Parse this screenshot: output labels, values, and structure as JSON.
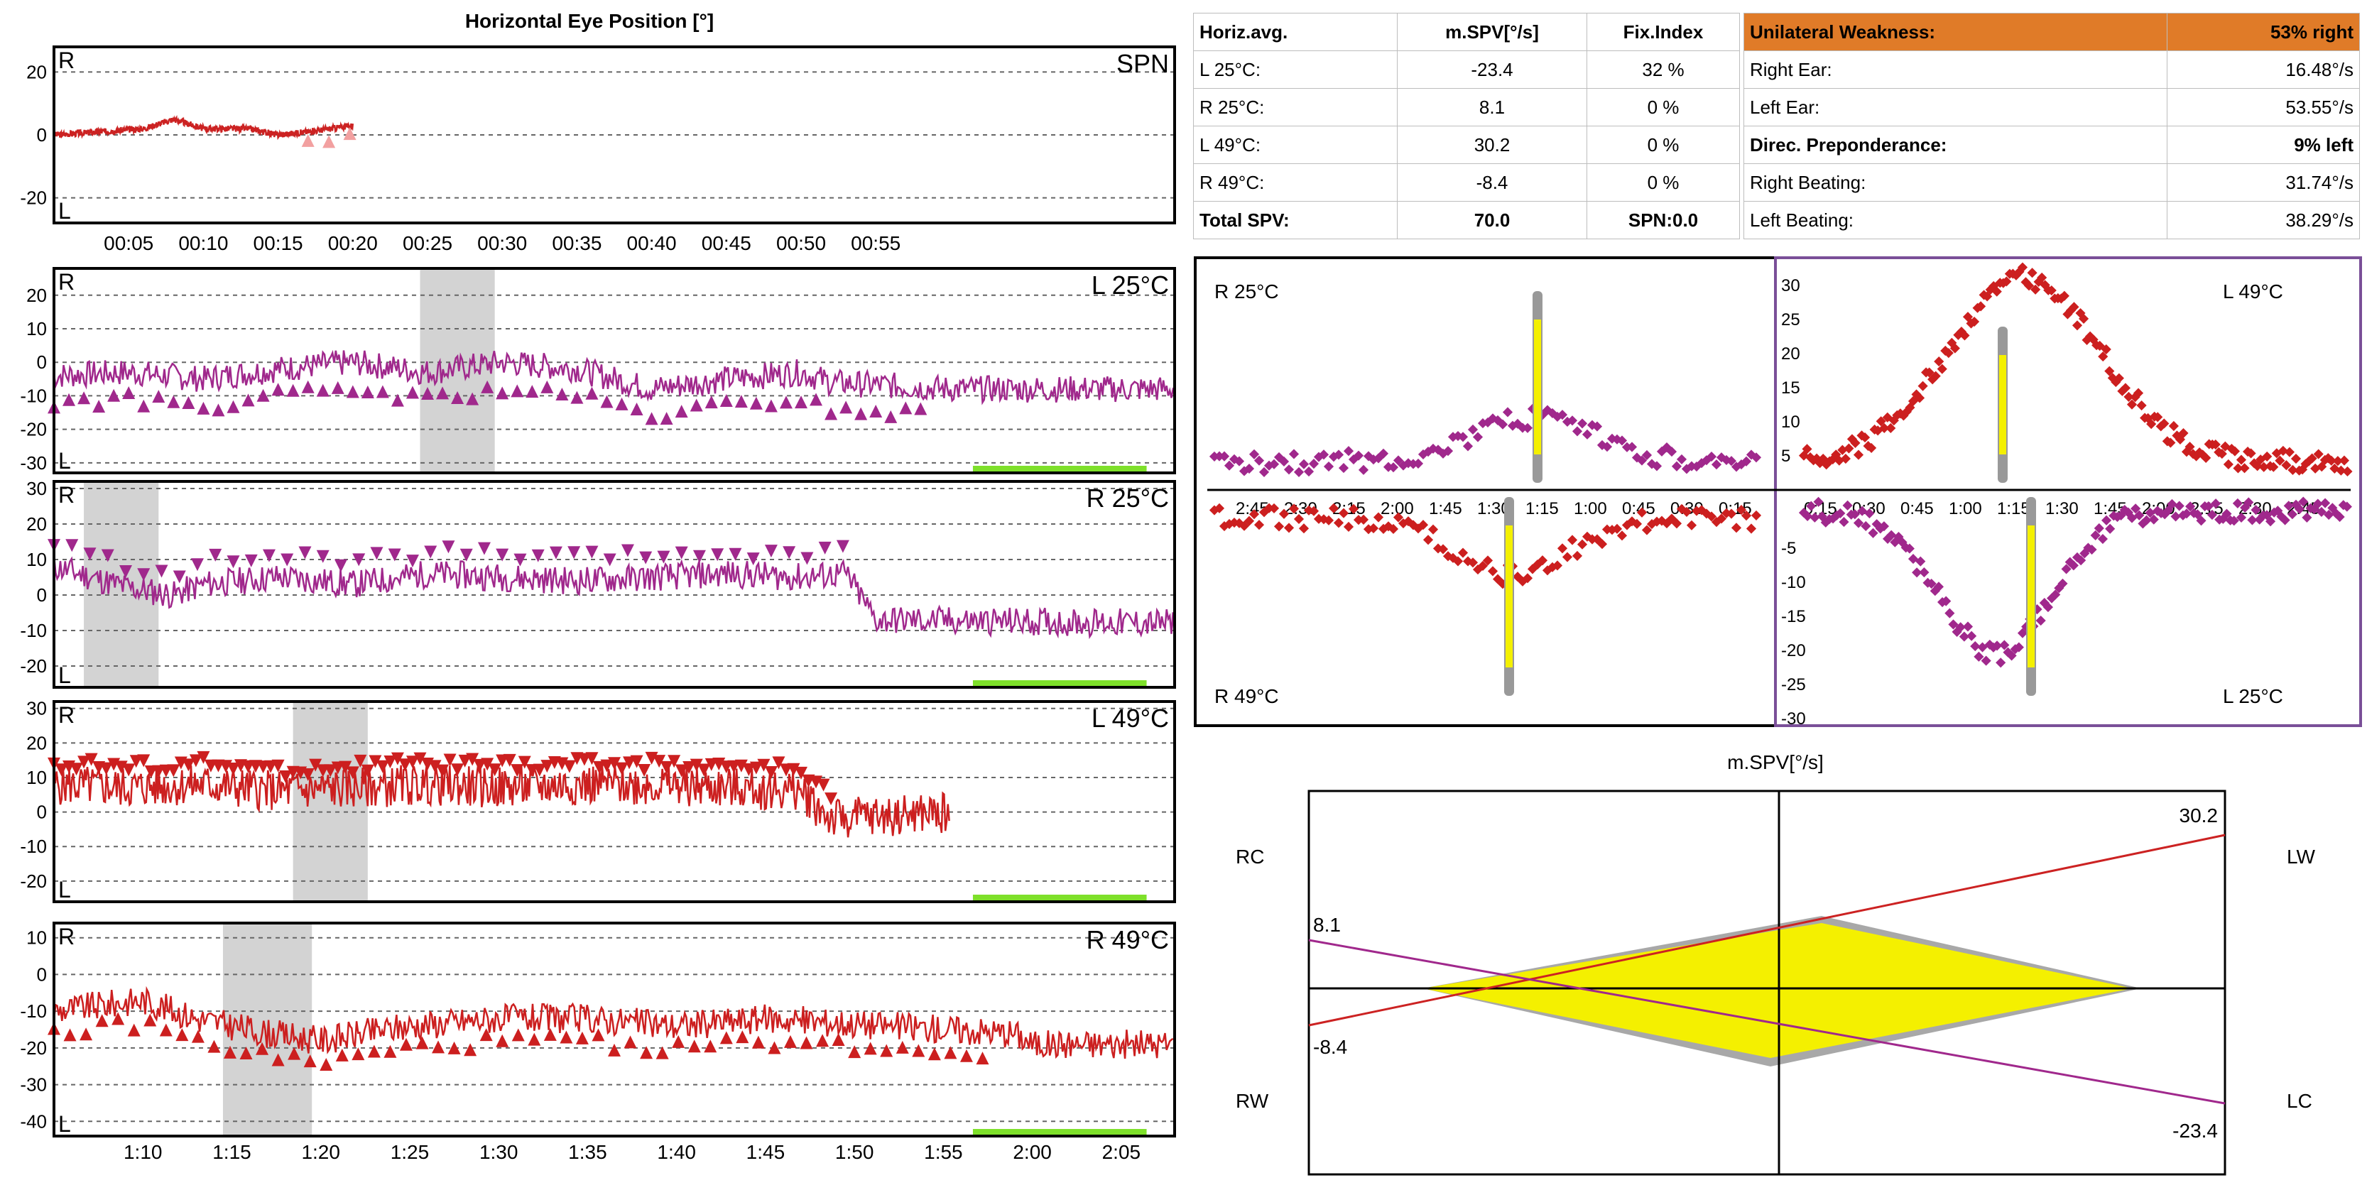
{
  "left_title": "Horizontal Eye Position [°]",
  "panels": [
    {
      "name": "SPN",
      "label": "SPN",
      "y_ticks": [
        20,
        0,
        -20
      ],
      "ylim": [
        -28,
        28
      ],
      "side_top": "R",
      "side_bottom": "L",
      "green_bar": false,
      "gray_band": null,
      "color": "#cc2222",
      "marker": "up",
      "marker_color": "#f2a0a0",
      "span": [
        0,
        20
      ],
      "base": [
        [
          0,
          0
        ],
        [
          3,
          1
        ],
        [
          6,
          2
        ],
        [
          8,
          5
        ],
        [
          10,
          2
        ],
        [
          13,
          2
        ],
        [
          15,
          0
        ],
        [
          17,
          1
        ],
        [
          20,
          3
        ]
      ],
      "noise": 1,
      "mk_offset": -4,
      "mk_every": 1.4,
      "mk_range": [
        17,
        20
      ],
      "seed": 3
    },
    {
      "name": "L25",
      "label": "L 25°C",
      "y_ticks": [
        20,
        10,
        0,
        -10,
        -20,
        -30
      ],
      "ylim": [
        -33,
        28
      ],
      "side_top": "R",
      "side_bottom": "L",
      "green_bar": true,
      "gray_band": [
        24.5,
        29.5
      ],
      "color": "#a0288c",
      "marker": "up",
      "marker_color": "#a0288c",
      "span": [
        0,
        75
      ],
      "base": [
        [
          0,
          -4
        ],
        [
          5,
          -3
        ],
        [
          10,
          -5
        ],
        [
          15,
          -2
        ],
        [
          20,
          0
        ],
        [
          25,
          -3
        ],
        [
          30,
          0
        ],
        [
          35,
          -2
        ],
        [
          40,
          -8
        ],
        [
          45,
          -5
        ],
        [
          50,
          -3
        ],
        [
          52,
          -6
        ],
        [
          60,
          -8
        ],
        [
          75,
          -8
        ]
      ],
      "noise": 4,
      "mk_offset": -8,
      "mk_every": 1.0,
      "mk_range": [
        0,
        58
      ],
      "seed": 7
    },
    {
      "name": "R25",
      "label": "R 25°C",
      "y_ticks": [
        30,
        20,
        10,
        0,
        -10,
        -20
      ],
      "ylim": [
        -26,
        32
      ],
      "side_top": "R",
      "side_bottom": "L",
      "green_bar": true,
      "gray_band": [
        2,
        7
      ],
      "color": "#a0288c",
      "marker": "down",
      "marker_color": "#a0288c",
      "span": [
        0,
        75
      ],
      "base": [
        [
          0,
          8
        ],
        [
          5,
          2
        ],
        [
          8,
          0
        ],
        [
          10,
          3
        ],
        [
          15,
          5
        ],
        [
          20,
          3
        ],
        [
          25,
          6
        ],
        [
          30,
          5
        ],
        [
          35,
          4
        ],
        [
          45,
          6
        ],
        [
          50,
          5
        ],
        [
          53,
          6
        ],
        [
          55,
          -7
        ],
        [
          75,
          -8
        ]
      ],
      "noise": 4,
      "mk_offset": 6,
      "mk_every": 1.2,
      "mk_range": [
        0,
        54
      ],
      "seed": 11
    },
    {
      "name": "L49",
      "label": "L 49°C",
      "y_ticks": [
        30,
        20,
        10,
        0,
        -10,
        -20
      ],
      "ylim": [
        -26,
        32
      ],
      "side_top": "R",
      "side_bottom": "L",
      "green_bar": true,
      "gray_band": [
        16,
        21
      ],
      "color": "#cc1f1f",
      "marker": "down",
      "marker_color": "#cc1f1f",
      "span": [
        0,
        60
      ],
      "base": [
        [
          0,
          8
        ],
        [
          5,
          7
        ],
        [
          10,
          8
        ],
        [
          15,
          6
        ],
        [
          20,
          7
        ],
        [
          25,
          8
        ],
        [
          30,
          7
        ],
        [
          35,
          8
        ],
        [
          40,
          8
        ],
        [
          45,
          7
        ],
        [
          50,
          6
        ],
        [
          52,
          -2
        ],
        [
          60,
          0
        ]
      ],
      "noise": 6,
      "mk_offset": 6,
      "mk_every": 0.5,
      "mk_range": [
        0,
        52
      ],
      "seed": 5
    },
    {
      "name": "R49",
      "label": "R 49°C",
      "y_ticks": [
        10,
        0,
        -10,
        -20,
        -30,
        -40
      ],
      "ylim": [
        -44,
        14
      ],
      "side_top": "R",
      "side_bottom": "L",
      "green_bar": true,
      "gray_band": [
        74.5,
        79.5
      ],
      "color": "#cc1f1f",
      "marker": "up",
      "marker_color": "#cc1f1f",
      "span": [
        65,
        128
      ],
      "base": [
        [
          65,
          -10
        ],
        [
          70,
          -7
        ],
        [
          73,
          -12
        ],
        [
          77,
          -16
        ],
        [
          80,
          -18
        ],
        [
          85,
          -14
        ],
        [
          90,
          -12
        ],
        [
          95,
          -12
        ],
        [
          100,
          -14
        ],
        [
          105,
          -12
        ],
        [
          112,
          -14
        ],
        [
          119,
          -16
        ],
        [
          120,
          -19
        ],
        [
          128,
          -19
        ]
      ],
      "noise": 4,
      "mk_offset": -6,
      "mk_every": 0.9,
      "mk_range": [
        65,
        118
      ],
      "seed": 9
    }
  ],
  "time_axis_1": [
    "00:05",
    "00:10",
    "00:15",
    "00:20",
    "00:25",
    "00:30",
    "00:35",
    "00:40",
    "00:45",
    "00:50",
    "00:55"
  ],
  "time_axis_2": [
    "1:10",
    "1:15",
    "1:20",
    "1:25",
    "1:30",
    "1:35",
    "1:40",
    "1:45",
    "1:50",
    "1:55",
    "2:00",
    "2:05"
  ],
  "table": {
    "headers": [
      "Horiz.avg.",
      "m.SPV[°/s]",
      "Fix.Index"
    ],
    "rows": [
      [
        "L 25°C:",
        "-23.4",
        "32 %"
      ],
      [
        "R 25°C:",
        "8.1",
        "0 %"
      ],
      [
        "L 49°C:",
        "30.2",
        "0 %"
      ],
      [
        "R 49°C:",
        "-8.4",
        "0 %"
      ],
      [
        "Total SPV:",
        "70.0",
        "SPN:0.0"
      ]
    ]
  },
  "summary": {
    "unilateral_label": "Unilateral Weakness:",
    "unilateral_value": "53% right",
    "right_ear_label": "Right Ear:",
    "right_ear_value": "16.48°/s",
    "left_ear_label": "Left Ear:",
    "left_ear_value": "53.55°/s",
    "dp_label": "Direc. Preponderance:",
    "dp_value": "9% left",
    "right_beat_label": "Right Beating:",
    "right_beat_value": "31.74°/s",
    "left_beat_label": "Left Beating:",
    "left_beat_value": "38.29°/s"
  },
  "butterfly": {
    "labels": {
      "top_left": "R 25°C",
      "bottom_left": "R 49°C",
      "top_right": "L 49°C",
      "bottom_right": "L 25°C"
    },
    "left_ticks": [
      "2:45",
      "2:30",
      "2:15",
      "2:00",
      "1:45",
      "1:30",
      "1:15",
      "1:00",
      "0:45",
      "0:30",
      "0:15"
    ],
    "right_ticks": [
      "0:15",
      "0:30",
      "0:45",
      "1:00",
      "1:15",
      "1:30",
      "1:45",
      "2:00",
      "2:15",
      "2:30",
      "2:45"
    ],
    "y_ticks_pos": [
      "30",
      "25",
      "20",
      "15",
      "10",
      "5"
    ],
    "y_ticks_neg": [
      "-5",
      "-10",
      "-15",
      "-20",
      "-25",
      "-30"
    ],
    "colors": {
      "purple": "#a0288c",
      "red": "#cc1f1f",
      "yellow": "#f4f000",
      "gray": "#999999"
    }
  },
  "freyer": {
    "title": "m.SPV[°/s]",
    "lw_label": "LW",
    "lc_label": "LC",
    "rc_label": "RC",
    "rw_label": "RW",
    "v_lw": "30.2",
    "v_lc": "-23.4",
    "v_rc": "8.1",
    "v_rw": "-8.4"
  },
  "chart_data": [
    {
      "type": "table",
      "title": "Horizontal averages",
      "columns": [
        "Horiz.avg.",
        "m.SPV[°/s]",
        "Fix.Index"
      ],
      "rows": [
        [
          "L 25°C",
          "-23.4",
          "32 %"
        ],
        [
          "R 25°C",
          "8.1",
          "0 %"
        ],
        [
          "L 49°C",
          "30.2",
          "0 %"
        ],
        [
          "R 49°C",
          "-8.4",
          "0 %"
        ],
        [
          "Total SPV",
          "70.0",
          "SPN:0.0"
        ]
      ]
    },
    {
      "type": "line",
      "title": "m.SPV[°/s]",
      "series": [
        {
          "name": "LW / RW",
          "values": [
            30.2,
            -8.4
          ]
        },
        {
          "name": "LC / RC",
          "values": [
            -23.4,
            8.1
          ]
        }
      ]
    }
  ]
}
